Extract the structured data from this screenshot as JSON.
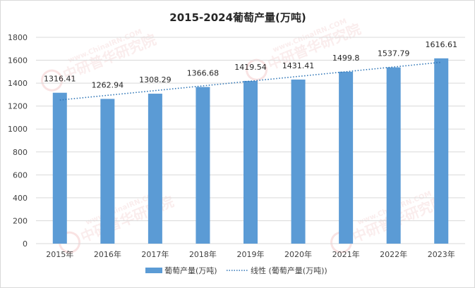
{
  "chart_data": {
    "type": "bar",
    "title": "2015-2024葡萄产量(万吨)",
    "categories": [
      "2015年",
      "2016年",
      "2017年",
      "2018年",
      "2019年",
      "2020年",
      "2021年",
      "2022年",
      "2023年"
    ],
    "series": [
      {
        "name": "葡萄产量(万吨)",
        "values": [
          1316.41,
          1262.94,
          1308.29,
          1366.68,
          1419.54,
          1431.41,
          1499.8,
          1537.79,
          1616.61
        ],
        "data_labels": [
          "1316.41",
          "1262.94",
          "1308.29",
          "1366.68",
          "1419.54",
          "1431.41",
          "1499.8",
          "1537.79",
          "1616.61"
        ],
        "color": "#5b9bd5"
      }
    ],
    "trendline": {
      "name": "线性 (葡萄产量(万吨))",
      "type": "linear",
      "color": "#2e75b6",
      "style": "dotted"
    },
    "y_ticks": [
      "0",
      "200",
      "400",
      "600",
      "800",
      "1000",
      "1200",
      "1400",
      "1600",
      "1800"
    ],
    "ylim": [
      0,
      1800
    ],
    "grid": true,
    "legend": "bottom",
    "xlabel": "",
    "ylabel": ""
  },
  "watermark": {
    "badge": "CIRN",
    "name": "中研普华研究院",
    "url": "www.ChinaIRN.COM",
    "color": "#e06666"
  }
}
